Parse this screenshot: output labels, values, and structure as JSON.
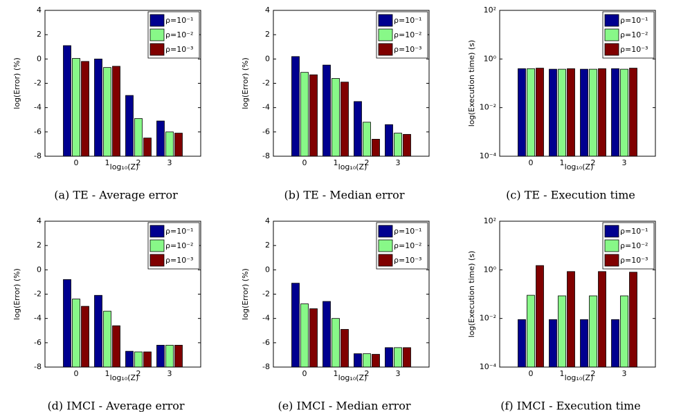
{
  "chart_data": [
    {
      "type": "bar",
      "title": "(a)  TE - Average error",
      "x_label": "log₁₀(Z)",
      "y_label": "log(Error) (%)",
      "categories": [
        "0",
        "1",
        "2",
        "3"
      ],
      "series": [
        {
          "name": "ρ=10⁻¹",
          "color": "#00008f",
          "values": [
            1.1,
            0,
            -3,
            -5.1
          ]
        },
        {
          "name": "ρ=10⁻²",
          "color": "#88f888",
          "values": [
            0.05,
            -0.7,
            -4.9,
            -6
          ]
        },
        {
          "name": "ρ=10⁻³",
          "color": "#800000",
          "values": [
            -0.2,
            -0.6,
            -6.5,
            -6.1
          ]
        }
      ],
      "ylim": [
        -8,
        4
      ],
      "yticks": [
        -8,
        -6,
        -4,
        -2,
        0,
        2,
        4
      ],
      "log_scale": false,
      "legend": "northeast"
    },
    {
      "type": "bar",
      "title": "(b)  TE - Median error",
      "x_label": "log₁₀(Z)",
      "y_label": "log(Error) (%)",
      "categories": [
        "0",
        "1",
        "2",
        "3"
      ],
      "series": [
        {
          "name": "ρ=10⁻¹",
          "color": "#00008f",
          "values": [
            0.2,
            -0.5,
            -3.5,
            -5.4
          ]
        },
        {
          "name": "ρ=10⁻²",
          "color": "#88f888",
          "values": [
            -1.1,
            -1.6,
            -5.2,
            -6.1
          ]
        },
        {
          "name": "ρ=10⁻³",
          "color": "#800000",
          "values": [
            -1.3,
            -1.9,
            -6.6,
            -6.2
          ]
        }
      ],
      "ylim": [
        -8,
        4
      ],
      "yticks": [
        -8,
        -6,
        -4,
        -2,
        0,
        2,
        4
      ],
      "log_scale": false,
      "legend": "northeast"
    },
    {
      "type": "bar",
      "title": "(c)  TE - Execution time",
      "x_label": "log₁₀(Z)",
      "y_label": "log(Execution time) (s)",
      "categories": [
        "0",
        "1",
        "2",
        "3"
      ],
      "series": [
        {
          "name": "ρ=10⁻¹",
          "color": "#00008f",
          "values": [
            0.4,
            0.38,
            0.38,
            0.4
          ]
        },
        {
          "name": "ρ=10⁻²",
          "color": "#88f888",
          "values": [
            0.4,
            0.38,
            0.38,
            0.38
          ]
        },
        {
          "name": "ρ=10⁻³",
          "color": "#800000",
          "values": [
            0.42,
            0.4,
            0.4,
            0.42
          ]
        }
      ],
      "ylim": [
        0.0001,
        100
      ],
      "yticks": [
        {
          "value": 0.0001,
          "label": "10⁻⁴"
        },
        {
          "value": 0.01,
          "label": "10⁻²"
        },
        {
          "value": 1,
          "label": "10⁰"
        },
        {
          "value": 100,
          "label": "10²"
        }
      ],
      "log_scale": true,
      "legend": "northeast"
    },
    {
      "type": "bar",
      "title": "(d)  IMCI - Average error",
      "x_label": "log₁₀(Z)",
      "y_label": "log(Error) (%)",
      "categories": [
        "0",
        "1",
        "2",
        "3"
      ],
      "series": [
        {
          "name": "ρ=10⁻¹",
          "color": "#00008f",
          "values": [
            -0.8,
            -2.1,
            -6.7,
            -6.2
          ]
        },
        {
          "name": "ρ=10⁻²",
          "color": "#88f888",
          "values": [
            -2.4,
            -3.4,
            -6.75,
            -6.2
          ]
        },
        {
          "name": "ρ=10⁻³",
          "color": "#800000",
          "values": [
            -3,
            -4.6,
            -6.75,
            -6.2
          ]
        }
      ],
      "ylim": [
        -8,
        4
      ],
      "yticks": [
        -8,
        -6,
        -4,
        -2,
        0,
        2,
        4
      ],
      "log_scale": false,
      "legend": "northeast"
    },
    {
      "type": "bar",
      "title": "(e)  IMCI - Median error",
      "x_label": "log₁₀(Z)",
      "y_label": "log(Error) (%)",
      "categories": [
        "0",
        "1",
        "2",
        "3"
      ],
      "series": [
        {
          "name": "ρ=10⁻¹",
          "color": "#00008f",
          "values": [
            -1.1,
            -2.6,
            -6.9,
            -6.4
          ]
        },
        {
          "name": "ρ=10⁻²",
          "color": "#88f888",
          "values": [
            -2.8,
            -4,
            -6.9,
            -6.4
          ]
        },
        {
          "name": "ρ=10⁻³",
          "color": "#800000",
          "values": [
            -3.2,
            -4.9,
            -6.95,
            -6.4
          ]
        }
      ],
      "ylim": [
        -8,
        4
      ],
      "yticks": [
        -8,
        -6,
        -4,
        -2,
        0,
        2,
        4
      ],
      "log_scale": false,
      "legend": "northeast"
    },
    {
      "type": "bar",
      "title": "(f)  IMCI - Execution time",
      "x_label": "log₁₀(Z)",
      "y_label": "log(Execution time) (s)",
      "categories": [
        "0",
        "1",
        "2",
        "3"
      ],
      "series": [
        {
          "name": "ρ=10⁻¹",
          "color": "#00008f",
          "values": [
            0.009,
            0.009,
            0.009,
            0.009
          ]
        },
        {
          "name": "ρ=10⁻²",
          "color": "#88f888",
          "values": [
            0.09,
            0.085,
            0.085,
            0.085
          ]
        },
        {
          "name": "ρ=10⁻³",
          "color": "#800000",
          "values": [
            1.5,
            0.85,
            0.85,
            0.8
          ]
        }
      ],
      "ylim": [
        0.0001,
        100
      ],
      "yticks": [
        {
          "value": 0.0001,
          "label": "10⁻⁴"
        },
        {
          "value": 0.01,
          "label": "10⁻²"
        },
        {
          "value": 1,
          "label": "10⁰"
        },
        {
          "value": 100,
          "label": "10²"
        }
      ],
      "log_scale": true,
      "legend": "northeast"
    }
  ]
}
